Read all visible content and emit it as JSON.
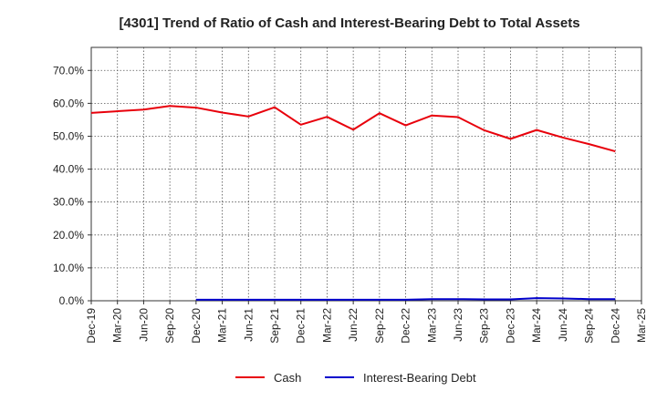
{
  "chart_data": {
    "type": "line",
    "title": "[4301]  Trend of Ratio of Cash and Interest-Bearing Debt to Total Assets",
    "xlabel": "",
    "ylabel": "",
    "ylim": [
      0,
      77
    ],
    "y_ticks": [
      "0.0%",
      "10.0%",
      "20.0%",
      "30.0%",
      "40.0%",
      "50.0%",
      "60.0%",
      "70.0%"
    ],
    "y_tick_values": [
      0,
      10,
      20,
      30,
      40,
      50,
      60,
      70
    ],
    "categories": [
      "Dec-19",
      "Mar-20",
      "Jun-20",
      "Sep-20",
      "Dec-20",
      "Mar-21",
      "Jun-21",
      "Sep-21",
      "Dec-21",
      "Mar-22",
      "Jun-22",
      "Sep-22",
      "Dec-22",
      "Mar-23",
      "Jun-23",
      "Sep-23",
      "Dec-23",
      "Mar-24",
      "Jun-24",
      "Sep-24",
      "Dec-24",
      "Mar-25"
    ],
    "grid": true,
    "legend_position": "bottom",
    "series": [
      {
        "name": "Cash",
        "color": "#e8000b",
        "values": [
          57.1,
          57.6,
          58.1,
          59.2,
          58.7,
          57.2,
          56.0,
          58.8,
          53.5,
          55.9,
          52.0,
          57.0,
          53.3,
          56.3,
          55.8,
          51.8,
          49.2,
          51.9,
          49.6,
          47.6,
          45.4,
          null
        ]
      },
      {
        "name": "Interest-Bearing Debt",
        "color": "#0000cc",
        "values": [
          null,
          null,
          null,
          null,
          0.3,
          0.3,
          0.3,
          0.3,
          0.3,
          0.3,
          0.3,
          0.3,
          0.3,
          0.5,
          0.5,
          0.4,
          0.4,
          0.8,
          0.7,
          0.5,
          0.5,
          null
        ]
      }
    ]
  }
}
